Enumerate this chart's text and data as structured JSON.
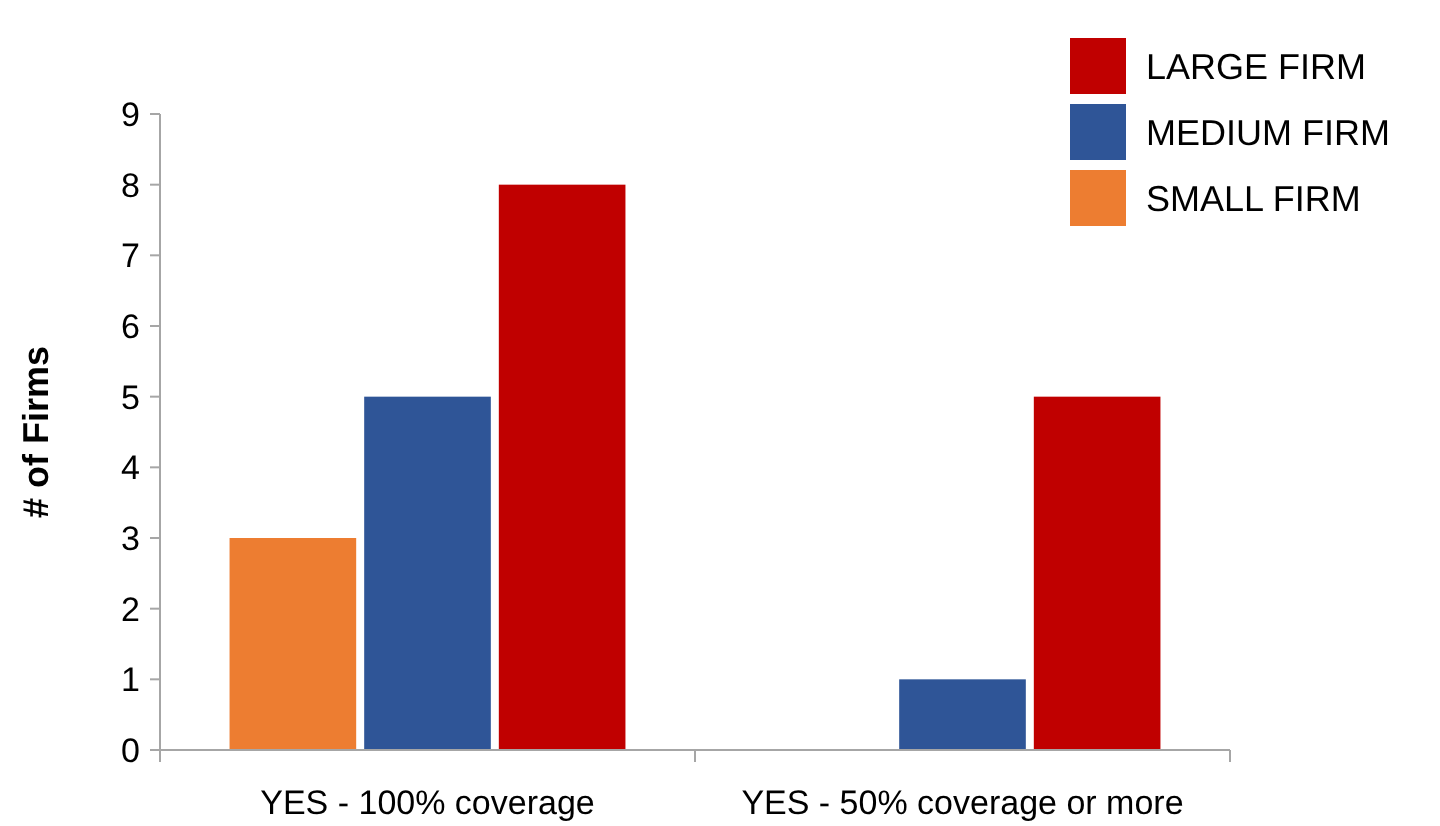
{
  "chart_data": {
    "type": "bar",
    "ylabel": "# of Firms",
    "categories": [
      "YES - 100% coverage",
      "YES - 50% coverage or more"
    ],
    "series": [
      {
        "name": "SMALL FIRM",
        "color": "#ed7d31",
        "values": [
          3,
          null
        ]
      },
      {
        "name": "MEDIUM FIRM",
        "color": "#2f5597",
        "values": [
          5,
          1
        ]
      },
      {
        "name": "LARGE FIRM",
        "color": "#c00000",
        "values": [
          8,
          5
        ]
      }
    ],
    "ylim": [
      0,
      9
    ],
    "yticks": [
      0,
      1,
      2,
      3,
      4,
      5,
      6,
      7,
      8,
      9
    ],
    "grid": false,
    "legend": "top right"
  }
}
